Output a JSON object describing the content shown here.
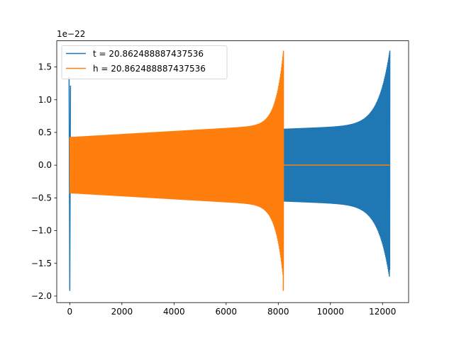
{
  "chart_data": {
    "type": "line",
    "x_range": [
      -500,
      13000
    ],
    "y_range": [
      -2.1,
      1.9
    ],
    "y_offset_label": "1e−22",
    "x_ticks": [
      {
        "value": 0,
        "label": "0"
      },
      {
        "value": 2000,
        "label": "2000"
      },
      {
        "value": 4000,
        "label": "4000"
      },
      {
        "value": 6000,
        "label": "6000"
      },
      {
        "value": 8000,
        "label": "8000"
      },
      {
        "value": 10000,
        "label": "10000"
      },
      {
        "value": 12000,
        "label": "12000"
      }
    ],
    "y_ticks": [
      {
        "value": 1.5,
        "label": "1.5"
      },
      {
        "value": 1.0,
        "label": "1.0"
      },
      {
        "value": 0.5,
        "label": "0.5"
      },
      {
        "value": 0.0,
        "label": "0.0"
      },
      {
        "value": -0.5,
        "label": "−0.5"
      },
      {
        "value": -1.0,
        "label": "−1.0"
      },
      {
        "value": -1.5,
        "label": "−1.5"
      },
      {
        "value": -2.0,
        "label": "−2.0"
      }
    ],
    "grid": false,
    "legend_position": "top-left",
    "series": [
      {
        "name": "t = 20.862488887437536",
        "color": "#1f77b4",
        "x_start": 0,
        "x_end": 12280,
        "envelope_start": 0.43,
        "envelope_end": 1.75,
        "min_at_end": -1.6,
        "initial_spike_max": 1.35,
        "initial_spike_min": -1.92
      },
      {
        "name": "h = 20.862488887437536",
        "color": "#ff7f0e",
        "x_start": 0,
        "x_end": 8200,
        "envelope_start": 0.43,
        "envelope_end": 1.75,
        "min_at_end": -1.92,
        "flat_after_x_end": 0.0,
        "flat_end_x": 12280
      }
    ]
  }
}
